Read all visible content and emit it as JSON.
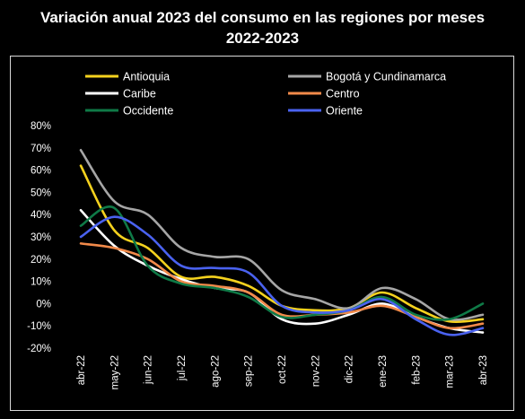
{
  "chart_data": {
    "type": "line",
    "title_lines": [
      "Variación anual 2023 del consumo en las regiones por meses",
      "2022-2023"
    ],
    "xlabel": "",
    "ylabel": "",
    "categories": [
      "abr-22",
      "may-22",
      "jun-22",
      "jul-22",
      "ago-22",
      "sep-22",
      "oct-22",
      "nov-22",
      "dic-22",
      "ene-23",
      "feb-23",
      "mar-23",
      "abr-23"
    ],
    "yticks": [
      "80%",
      "70%",
      "60%",
      "50%",
      "40%",
      "30%",
      "20%",
      "10%",
      "0%",
      "-10%",
      "-20%"
    ],
    "ylim": [
      -20,
      80
    ],
    "ytick_step": 10,
    "grid": false,
    "legend_position": "top",
    "smooth": true,
    "series": [
      {
        "name": "Antioquia",
        "color": "#f5d21e",
        "values": [
          62,
          33,
          25,
          12,
          12,
          8,
          -1,
          -3,
          -2,
          5,
          -2,
          -8,
          -7
        ]
      },
      {
        "name": "Bogotá y Cundinamarca",
        "color": "#a6a6a6",
        "values": [
          69,
          46,
          40,
          25,
          21,
          20,
          6,
          2,
          -2,
          7,
          2,
          -7,
          -5
        ]
      },
      {
        "name": "Caribe",
        "color": "#ffffff",
        "values": [
          42,
          26,
          17,
          11,
          7,
          5,
          -7,
          -9,
          -5,
          0,
          -6,
          -11,
          -13
        ]
      },
      {
        "name": "Centro",
        "color": "#f28a4a",
        "values": [
          27,
          25,
          20,
          10,
          8,
          5,
          -5,
          -5,
          -4,
          -1,
          -6,
          -11,
          -9
        ]
      },
      {
        "name": "Occidente",
        "color": "#0f7a47",
        "values": [
          35,
          43,
          17,
          9,
          7,
          3,
          -6,
          -5,
          -3,
          3,
          -5,
          -7,
          0
        ]
      },
      {
        "name": "Oriente",
        "color": "#4a62f0",
        "values": [
          30,
          39,
          31,
          17,
          16,
          14,
          -1,
          -4,
          -3,
          2,
          -7,
          -14,
          -11
        ]
      }
    ]
  }
}
